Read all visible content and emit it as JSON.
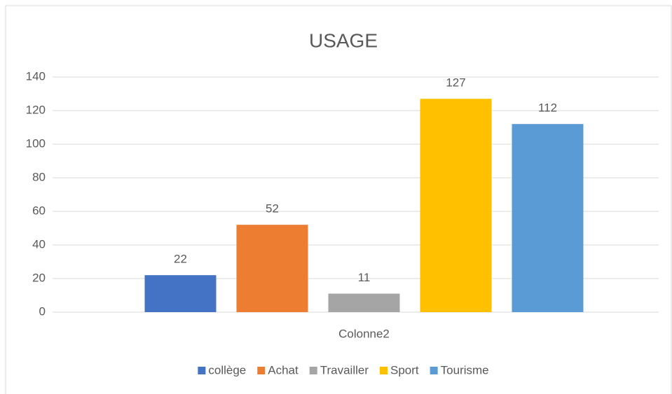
{
  "chart_data": {
    "type": "bar",
    "title": "USAGE",
    "categories": [
      "Colonne2"
    ],
    "series": [
      {
        "name": "collège",
        "color": "#4472c4",
        "values": [
          22
        ]
      },
      {
        "name": "Achat",
        "color": "#ed7d31",
        "values": [
          52
        ]
      },
      {
        "name": "Travailler",
        "color": "#a5a5a5",
        "values": [
          11
        ]
      },
      {
        "name": "Sport",
        "color": "#ffc000",
        "values": [
          127
        ]
      },
      {
        "name": "Tourisme",
        "color": "#5b9bd5",
        "values": [
          112
        ]
      }
    ],
    "ylim": [
      0,
      140
    ],
    "yticks": [
      0,
      20,
      40,
      60,
      80,
      100,
      120,
      140
    ],
    "grid": true,
    "legend": "bottom"
  }
}
